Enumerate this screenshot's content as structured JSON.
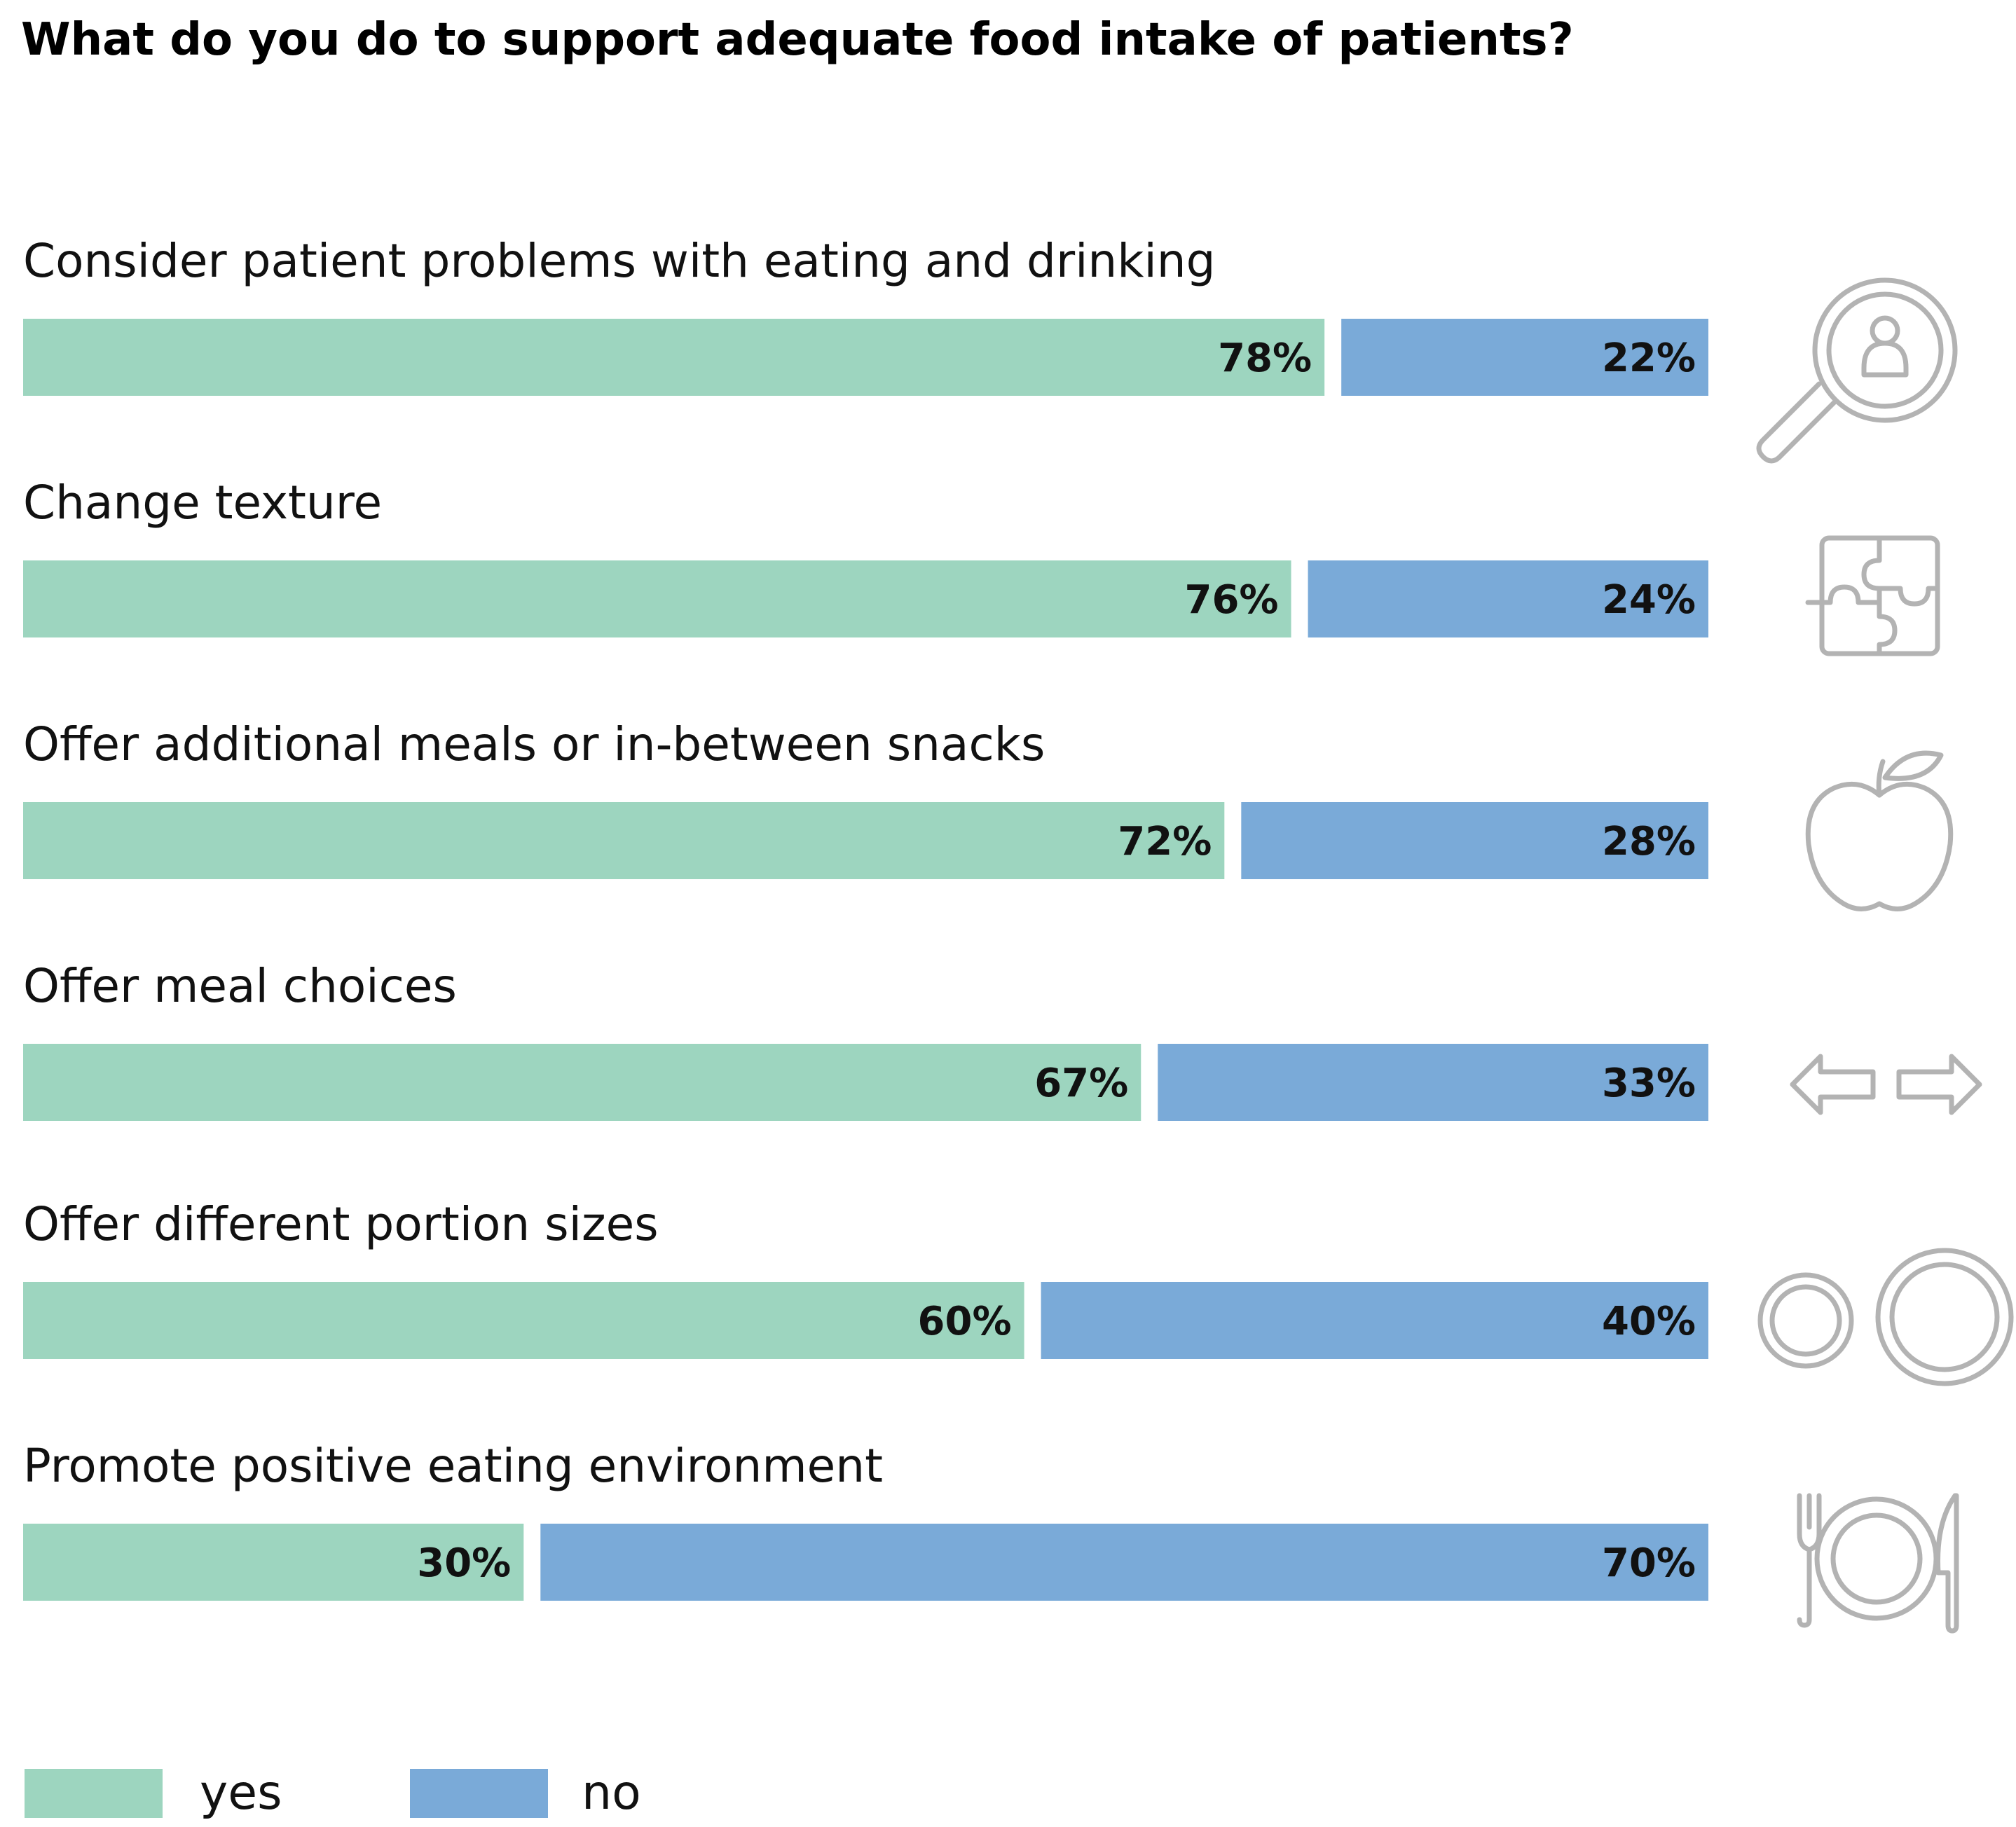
{
  "chart_data": {
    "type": "bar",
    "stacked": true,
    "orientation": "horizontal",
    "title": "What do you do to support adequate food intake of patients?",
    "categories": [
      "Consider patient problems with eating and drinking",
      "Change texture",
      "Offer additional meals or in-between snacks",
      "Offer meal choices",
      "Offer different portion sizes",
      "Promote positive eating environment"
    ],
    "series": [
      {
        "name": "yes",
        "values": [
          78,
          76,
          72,
          67,
          60,
          30
        ],
        "labels": [
          "78%",
          "76%",
          "72%",
          "67%",
          "60%",
          "30%"
        ],
        "color": "#9dd5bf"
      },
      {
        "name": "no",
        "values": [
          22,
          24,
          28,
          33,
          40,
          70
        ],
        "labels": [
          "22%",
          "24%",
          "28%",
          "33%",
          "40%",
          "70%"
        ],
        "color": "#7aaad8"
      }
    ],
    "xlim": [
      0,
      100
    ],
    "legend": "bottom-left",
    "grid": false,
    "icons": [
      "magnifier-person-icon",
      "puzzle-icon",
      "apple-icon",
      "left-right-arrows-icon",
      "two-plates-icon",
      "plate-cutlery-icon"
    ],
    "icon_color": "#b3b3b3"
  }
}
